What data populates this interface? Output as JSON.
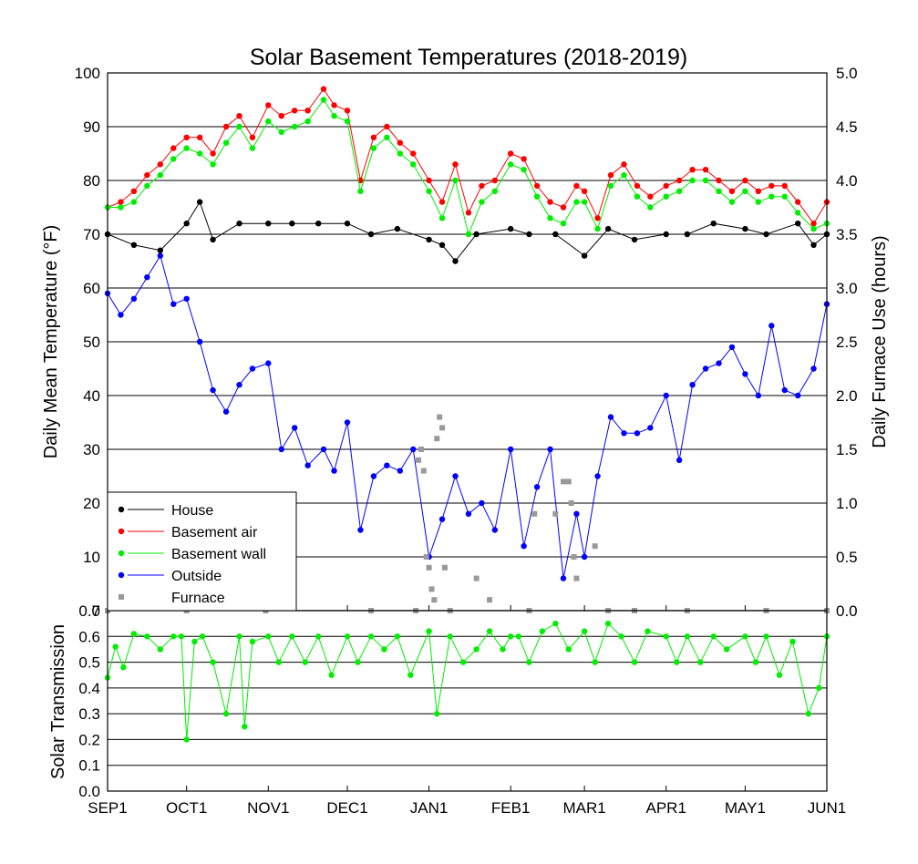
{
  "chart_data": [
    {
      "type": "line",
      "title": "Solar Basement Temperatures (2018-2019)",
      "ylabel": "Daily Mean Temperature (°F)",
      "y2label": "Daily Furnace Use (hours)",
      "ylim": [
        0,
        100
      ],
      "y2lim": [
        0,
        5
      ],
      "yticks": [
        "0",
        "10",
        "20",
        "30",
        "40",
        "50",
        "60",
        "70",
        "80",
        "90",
        "100"
      ],
      "y2ticks": [
        "0.0",
        "0.5",
        "1.0",
        "1.5",
        "2.0",
        "2.5",
        "3.0",
        "3.5",
        "4.0",
        "4.5",
        "5.0"
      ],
      "x_tick_labels": [
        "SEP1",
        "OCT1",
        "NOV1",
        "DEC1",
        "JAN1",
        "FEB1",
        "MAR1",
        "APR1",
        "MAY1",
        "JUN1"
      ],
      "x_tick_days": [
        0,
        30,
        61,
        91,
        122,
        153,
        181,
        212,
        242,
        273
      ],
      "grid": "horizontal",
      "legend_position": "bottom-left",
      "legend": [
        "House",
        "Basement air",
        "Basement wall",
        "Outside",
        "Furnace"
      ],
      "colors": {
        "house": "#000000",
        "air": "#ff0000",
        "wall": "#00ee00",
        "outside": "#0000ff",
        "furnace": "#999999"
      },
      "series": [
        {
          "name": "House",
          "key": "house",
          "x": [
            0,
            10,
            20,
            30,
            35,
            40,
            50,
            61,
            70,
            80,
            91,
            100,
            110,
            122,
            127,
            132,
            140,
            153,
            160,
            170,
            181,
            190,
            200,
            212,
            220,
            230,
            242,
            250,
            262,
            268,
            273
          ],
          "y": [
            70,
            68,
            67,
            72,
            76,
            69,
            72,
            72,
            72,
            72,
            72,
            70,
            71,
            69,
            68,
            65,
            70,
            71,
            70,
            70,
            66,
            71,
            69,
            70,
            70,
            72,
            71,
            70,
            72,
            68,
            70
          ]
        },
        {
          "name": "Basement air",
          "key": "air",
          "x": [
            0,
            5,
            10,
            15,
            20,
            25,
            30,
            35,
            40,
            45,
            50,
            55,
            61,
            66,
            71,
            76,
            82,
            86,
            91,
            96,
            101,
            106,
            111,
            116,
            122,
            127,
            132,
            137,
            142,
            147,
            153,
            158,
            163,
            168,
            173,
            178,
            181,
            186,
            191,
            196,
            201,
            206,
            212,
            217,
            222,
            227,
            232,
            237,
            242,
            247,
            252,
            257,
            262,
            268,
            273
          ],
          "y": [
            75,
            76,
            78,
            81,
            83,
            86,
            88,
            88,
            85,
            90,
            92,
            88,
            94,
            92,
            93,
            93,
            97,
            94,
            93,
            80,
            88,
            90,
            87,
            85,
            80,
            76,
            83,
            74,
            79,
            80,
            85,
            84,
            79,
            76,
            75,
            79,
            78,
            73,
            81,
            83,
            79,
            77,
            79,
            80,
            82,
            82,
            80,
            78,
            80,
            78,
            79,
            79,
            76,
            72,
            76
          ]
        },
        {
          "name": "Basement wall",
          "key": "wall",
          "x": [
            0,
            5,
            10,
            15,
            20,
            25,
            30,
            35,
            40,
            45,
            50,
            55,
            61,
            66,
            71,
            76,
            82,
            86,
            91,
            96,
            101,
            106,
            111,
            116,
            122,
            127,
            132,
            137,
            142,
            147,
            153,
            158,
            163,
            168,
            173,
            178,
            181,
            186,
            191,
            196,
            201,
            206,
            212,
            217,
            222,
            227,
            232,
            237,
            242,
            247,
            252,
            257,
            262,
            268,
            273
          ],
          "y": [
            75,
            75,
            76,
            79,
            81,
            84,
            86,
            85,
            83,
            87,
            90,
            86,
            91,
            89,
            90,
            91,
            95,
            92,
            91,
            78,
            86,
            88,
            85,
            83,
            78,
            73,
            80,
            70,
            76,
            78,
            83,
            82,
            77,
            73,
            72,
            76,
            76,
            71,
            79,
            81,
            77,
            75,
            77,
            78,
            80,
            80,
            78,
            76,
            78,
            76,
            77,
            77,
            74,
            71,
            72
          ]
        },
        {
          "name": "Outside",
          "key": "outside",
          "x": [
            0,
            5,
            10,
            15,
            20,
            25,
            30,
            35,
            40,
            45,
            50,
            55,
            61,
            66,
            71,
            76,
            82,
            86,
            91,
            96,
            101,
            106,
            111,
            116,
            122,
            127,
            132,
            137,
            142,
            147,
            153,
            158,
            163,
            168,
            173,
            178,
            181,
            186,
            191,
            196,
            201,
            206,
            212,
            217,
            222,
            227,
            232,
            237,
            242,
            247,
            252,
            257,
            262,
            268,
            273
          ],
          "y": [
            59,
            55,
            58,
            62,
            66,
            57,
            58,
            50,
            41,
            37,
            42,
            45,
            46,
            30,
            34,
            27,
            30,
            26,
            35,
            15,
            25,
            27,
            26,
            30,
            10,
            17,
            25,
            18,
            20,
            15,
            30,
            12,
            23,
            30,
            6,
            18,
            10,
            25,
            36,
            33,
            33,
            34,
            40,
            28,
            42,
            45,
            46,
            49,
            44,
            40,
            53,
            41,
            40,
            45,
            57
          ]
        },
        {
          "name": "Furnace",
          "key": "furnace",
          "x": [
            0,
            30,
            60,
            100,
            117,
            118,
            119,
            120,
            121,
            122,
            123,
            124,
            125,
            126,
            127,
            128,
            130,
            140,
            145,
            160,
            162,
            170,
            173,
            175,
            176,
            177,
            178,
            185,
            190,
            200,
            220,
            250,
            273
          ],
          "y": [
            0,
            0,
            0,
            0,
            0,
            1.4,
            1.5,
            1.3,
            0.5,
            0.4,
            0.2,
            0.1,
            1.6,
            1.8,
            1.7,
            0.4,
            0,
            0.3,
            0.1,
            0,
            0.9,
            0.9,
            1.2,
            1.2,
            1.0,
            0.5,
            0.3,
            0.6,
            0,
            0,
            0,
            0,
            0
          ]
        }
      ]
    },
    {
      "type": "line",
      "ylabel": "Solar Transmission",
      "ylim": [
        0,
        0.7
      ],
      "yticks": [
        "0.0",
        "0.1",
        "0.2",
        "0.3",
        "0.4",
        "0.5",
        "0.6",
        "0.7"
      ],
      "grid": "horizontal",
      "series": [
        {
          "name": "Solar Transmission",
          "key": "trans",
          "x": [
            0,
            3,
            6,
            10,
            15,
            20,
            25,
            28,
            30,
            33,
            36,
            40,
            45,
            50,
            52,
            55,
            61,
            65,
            70,
            75,
            80,
            85,
            91,
            95,
            100,
            105,
            110,
            115,
            122,
            125,
            130,
            135,
            140,
            145,
            150,
            153,
            156,
            160,
            165,
            170,
            175,
            181,
            185,
            190,
            195,
            200,
            205,
            212,
            216,
            220,
            225,
            230,
            235,
            242,
            246,
            250,
            255,
            260,
            266,
            270,
            273
          ],
          "y": [
            0.44,
            0.56,
            0.48,
            0.61,
            0.6,
            0.55,
            0.6,
            0.6,
            0.2,
            0.58,
            0.6,
            0.5,
            0.3,
            0.6,
            0.25,
            0.58,
            0.6,
            0.5,
            0.6,
            0.5,
            0.6,
            0.45,
            0.6,
            0.5,
            0.6,
            0.55,
            0.6,
            0.45,
            0.62,
            0.3,
            0.6,
            0.5,
            0.55,
            0.62,
            0.55,
            0.6,
            0.6,
            0.5,
            0.62,
            0.65,
            0.55,
            0.62,
            0.5,
            0.65,
            0.6,
            0.5,
            0.62,
            0.6,
            0.5,
            0.6,
            0.5,
            0.6,
            0.55,
            0.6,
            0.5,
            0.6,
            0.45,
            0.58,
            0.3,
            0.4,
            0.6
          ]
        }
      ]
    }
  ]
}
